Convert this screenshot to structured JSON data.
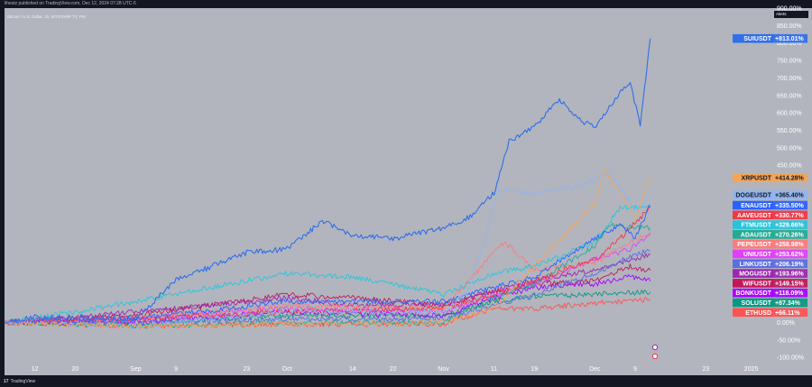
{
  "publisher_line": "lihestz published on TradingView.com, Dec 12, 2024 07:28 UTC-5",
  "symbol_line": "Bitcoin / U.S. Dollar, 1h, BITSTAMP  TV, PM",
  "alerts_label": "Alerts",
  "footer": {
    "logo_glyph": "17",
    "brand": "TradingView"
  },
  "colors": {
    "background": "#b2b5be",
    "frame": "#131722",
    "axis_text": "#ffffff"
  },
  "chart_data": {
    "type": "line",
    "y_axis": {
      "unit": "%",
      "ylim": [
        -110,
        900
      ],
      "ticks": [
        {
          "value": 900,
          "label": "900.00%"
        },
        {
          "value": 850,
          "label": "850.00%"
        },
        {
          "value": 800,
          "label": "800.00%"
        },
        {
          "value": 750,
          "label": "750.00%"
        },
        {
          "value": 700,
          "label": "700.00%"
        },
        {
          "value": 650,
          "label": "650.00%"
        },
        {
          "value": 600,
          "label": "600.00%"
        },
        {
          "value": 550,
          "label": "550.00%"
        },
        {
          "value": 500,
          "label": "500.00%"
        },
        {
          "value": 450,
          "label": "450.00%"
        },
        {
          "value": 0,
          "label": "0.00%"
        },
        {
          "value": -50,
          "label": "-50.00%"
        },
        {
          "value": -100,
          "label": "-100.00%"
        }
      ]
    },
    "x_axis": {
      "range": [
        "2024-08-06",
        "2025-01-05"
      ],
      "ticks": [
        {
          "date": "2024-08-12",
          "label": "12"
        },
        {
          "date": "2024-08-20",
          "label": "20"
        },
        {
          "date": "2024-09-01",
          "label": "Sep"
        },
        {
          "date": "2024-09-09",
          "label": "9"
        },
        {
          "date": "2024-09-23",
          "label": "23"
        },
        {
          "date": "2024-10-01",
          "label": "Oct"
        },
        {
          "date": "2024-10-14",
          "label": "14"
        },
        {
          "date": "2024-10-22",
          "label": "22"
        },
        {
          "date": "2024-11-01",
          "label": "Nov"
        },
        {
          "date": "2024-11-11",
          "label": "11"
        },
        {
          "date": "2024-11-19",
          "label": "19"
        },
        {
          "date": "2024-12-01",
          "label": "Dec"
        },
        {
          "date": "2024-12-09",
          "label": "9"
        },
        {
          "date": "2024-12-23",
          "label": "23"
        },
        {
          "date": "2025-01-01",
          "label": "2025"
        }
      ]
    },
    "series": [
      {
        "name": "SUIUSDT",
        "color": "#2f6fe8",
        "last": "+813.01%",
        "points": [
          [
            "2024-08-06",
            0
          ],
          [
            "2024-08-12",
            15
          ],
          [
            "2024-08-20",
            15
          ],
          [
            "2024-09-01",
            10
          ],
          [
            "2024-09-09",
            120
          ],
          [
            "2024-09-23",
            200
          ],
          [
            "2024-10-01",
            210
          ],
          [
            "2024-10-08",
            290
          ],
          [
            "2024-10-14",
            250
          ],
          [
            "2024-10-22",
            240
          ],
          [
            "2024-11-01",
            270
          ],
          [
            "2024-11-06",
            300
          ],
          [
            "2024-11-11",
            370
          ],
          [
            "2024-11-14",
            520
          ],
          [
            "2024-11-19",
            560
          ],
          [
            "2024-11-24",
            640
          ],
          [
            "2024-11-28",
            580
          ],
          [
            "2024-12-01",
            560
          ],
          [
            "2024-12-05",
            640
          ],
          [
            "2024-12-08",
            690
          ],
          [
            "2024-12-10",
            560
          ],
          [
            "2024-12-12",
            813
          ]
        ]
      },
      {
        "name": "XRPUSDT",
        "color": "#f5a455",
        "last": "+414.28%",
        "points": [
          [
            "2024-08-06",
            0
          ],
          [
            "2024-09-01",
            -10
          ],
          [
            "2024-10-01",
            -5
          ],
          [
            "2024-11-01",
            0
          ],
          [
            "2024-11-11",
            40
          ],
          [
            "2024-11-19",
            160
          ],
          [
            "2024-11-25",
            250
          ],
          [
            "2024-12-01",
            340
          ],
          [
            "2024-12-03",
            440
          ],
          [
            "2024-12-06",
            370
          ],
          [
            "2024-12-09",
            300
          ],
          [
            "2024-12-12",
            414
          ]
        ]
      },
      {
        "name": "DOGEUSDT",
        "color": "#91b4ef",
        "last": "+365.40%",
        "points": [
          [
            "2024-08-06",
            0
          ],
          [
            "2024-09-01",
            -10
          ],
          [
            "2024-10-01",
            30
          ],
          [
            "2024-11-01",
            30
          ],
          [
            "2024-11-06",
            90
          ],
          [
            "2024-11-12",
            380
          ],
          [
            "2024-11-19",
            370
          ],
          [
            "2024-11-28",
            390
          ],
          [
            "2024-12-04",
            430
          ],
          [
            "2024-12-09",
            320
          ],
          [
            "2024-12-12",
            365
          ]
        ]
      },
      {
        "name": "ENAUSDT",
        "color": "#2962ff",
        "last": "+335.50%",
        "points": [
          [
            "2024-08-06",
            0
          ],
          [
            "2024-09-01",
            10
          ],
          [
            "2024-10-01",
            60
          ],
          [
            "2024-11-01",
            60
          ],
          [
            "2024-11-11",
            100
          ],
          [
            "2024-11-19",
            130
          ],
          [
            "2024-12-01",
            240
          ],
          [
            "2024-12-06",
            280
          ],
          [
            "2024-12-09",
            240
          ],
          [
            "2024-12-12",
            335
          ]
        ]
      },
      {
        "name": "AAVEUSDT",
        "color": "#f23645",
        "last": "+330.77%",
        "points": [
          [
            "2024-08-06",
            0
          ],
          [
            "2024-09-01",
            10
          ],
          [
            "2024-10-01",
            30
          ],
          [
            "2024-11-01",
            40
          ],
          [
            "2024-11-11",
            80
          ],
          [
            "2024-11-19",
            120
          ],
          [
            "2024-12-01",
            180
          ],
          [
            "2024-12-06",
            240
          ],
          [
            "2024-12-12",
            330
          ]
        ]
      },
      {
        "name": "FTMUSDT",
        "color": "#26c6da",
        "last": "+329.66%",
        "points": [
          [
            "2024-08-06",
            0
          ],
          [
            "2024-08-20",
            30
          ],
          [
            "2024-09-01",
            60
          ],
          [
            "2024-09-23",
            120
          ],
          [
            "2024-10-01",
            140
          ],
          [
            "2024-10-14",
            130
          ],
          [
            "2024-11-01",
            80
          ],
          [
            "2024-11-11",
            140
          ],
          [
            "2024-11-19",
            160
          ],
          [
            "2024-12-01",
            230
          ],
          [
            "2024-12-06",
            330
          ],
          [
            "2024-12-12",
            330
          ]
        ]
      },
      {
        "name": "ADAUSDT",
        "color": "#22ab94",
        "last": "+270.26%",
        "points": [
          [
            "2024-08-06",
            0
          ],
          [
            "2024-09-01",
            -10
          ],
          [
            "2024-10-01",
            0
          ],
          [
            "2024-11-01",
            0
          ],
          [
            "2024-11-11",
            70
          ],
          [
            "2024-11-19",
            110
          ],
          [
            "2024-12-01",
            220
          ],
          [
            "2024-12-04",
            280
          ],
          [
            "2024-12-12",
            270
          ]
        ]
      },
      {
        "name": "PEPEUSDT",
        "color": "#ff7a7a",
        "last": "+258.98%",
        "points": [
          [
            "2024-08-06",
            0
          ],
          [
            "2024-09-01",
            10
          ],
          [
            "2024-10-01",
            50
          ],
          [
            "2024-11-01",
            40
          ],
          [
            "2024-11-13",
            230
          ],
          [
            "2024-11-19",
            150
          ],
          [
            "2024-12-01",
            170
          ],
          [
            "2024-12-08",
            230
          ],
          [
            "2024-12-12",
            259
          ]
        ]
      },
      {
        "name": "UNIUSDT",
        "color": "#e040fb",
        "last": "+253.62%",
        "points": [
          [
            "2024-08-06",
            0
          ],
          [
            "2024-09-01",
            10
          ],
          [
            "2024-10-01",
            40
          ],
          [
            "2024-11-01",
            30
          ],
          [
            "2024-11-11",
            80
          ],
          [
            "2024-11-19",
            110
          ],
          [
            "2024-12-01",
            180
          ],
          [
            "2024-12-08",
            210
          ],
          [
            "2024-12-12",
            254
          ]
        ]
      },
      {
        "name": "LINKUSDT",
        "color": "#5b6ee1",
        "last": "+206.19%",
        "points": [
          [
            "2024-08-06",
            0
          ],
          [
            "2024-09-01",
            0
          ],
          [
            "2024-10-01",
            10
          ],
          [
            "2024-11-01",
            10
          ],
          [
            "2024-11-11",
            50
          ],
          [
            "2024-11-19",
            80
          ],
          [
            "2024-12-01",
            140
          ],
          [
            "2024-12-08",
            190
          ],
          [
            "2024-12-12",
            206
          ]
        ]
      },
      {
        "name": "MOGUSDT",
        "color": "#9c27b0",
        "last": "+193.96%",
        "points": [
          [
            "2024-08-06",
            0
          ],
          [
            "2024-09-01",
            30
          ],
          [
            "2024-10-01",
            70
          ],
          [
            "2024-10-14",
            50
          ],
          [
            "2024-11-01",
            50
          ],
          [
            "2024-11-11",
            90
          ],
          [
            "2024-11-19",
            120
          ],
          [
            "2024-12-01",
            150
          ],
          [
            "2024-12-08",
            180
          ],
          [
            "2024-12-12",
            194
          ]
        ]
      },
      {
        "name": "WIFUSDT",
        "color": "#c2185b",
        "last": "+149.15%",
        "points": [
          [
            "2024-08-06",
            0
          ],
          [
            "2024-09-01",
            20
          ],
          [
            "2024-10-01",
            80
          ],
          [
            "2024-10-14",
            70
          ],
          [
            "2024-11-01",
            50
          ],
          [
            "2024-11-11",
            90
          ],
          [
            "2024-11-19",
            110
          ],
          [
            "2024-12-01",
            120
          ],
          [
            "2024-12-08",
            160
          ],
          [
            "2024-12-12",
            149
          ]
        ]
      },
      {
        "name": "BONKUSDT",
        "color": "#aa00ff",
        "last": "+118.09%",
        "points": [
          [
            "2024-08-06",
            0
          ],
          [
            "2024-09-01",
            0
          ],
          [
            "2024-10-01",
            30
          ],
          [
            "2024-11-01",
            20
          ],
          [
            "2024-11-11",
            70
          ],
          [
            "2024-11-19",
            100
          ],
          [
            "2024-12-01",
            110
          ],
          [
            "2024-12-08",
            130
          ],
          [
            "2024-12-12",
            118
          ]
        ]
      },
      {
        "name": "SOLUSDT",
        "color": "#089981",
        "last": "+87.34%",
        "points": [
          [
            "2024-08-06",
            0
          ],
          [
            "2024-09-01",
            -5
          ],
          [
            "2024-10-01",
            20
          ],
          [
            "2024-11-01",
            20
          ],
          [
            "2024-11-11",
            60
          ],
          [
            "2024-11-19",
            75
          ],
          [
            "2024-12-01",
            80
          ],
          [
            "2024-12-08",
            85
          ],
          [
            "2024-12-12",
            87
          ]
        ]
      },
      {
        "name": "ETHUSD",
        "color": "#ff5252",
        "last": "+66.11%",
        "points": [
          [
            "2024-08-06",
            0
          ],
          [
            "2024-09-01",
            -10
          ],
          [
            "2024-10-01",
            -5
          ],
          [
            "2024-11-01",
            -5
          ],
          [
            "2024-11-11",
            40
          ],
          [
            "2024-11-19",
            40
          ],
          [
            "2024-12-01",
            55
          ],
          [
            "2024-12-08",
            60
          ],
          [
            "2024-12-12",
            66
          ]
        ]
      }
    ],
    "grid": false,
    "legend": "right-axis-labels"
  }
}
